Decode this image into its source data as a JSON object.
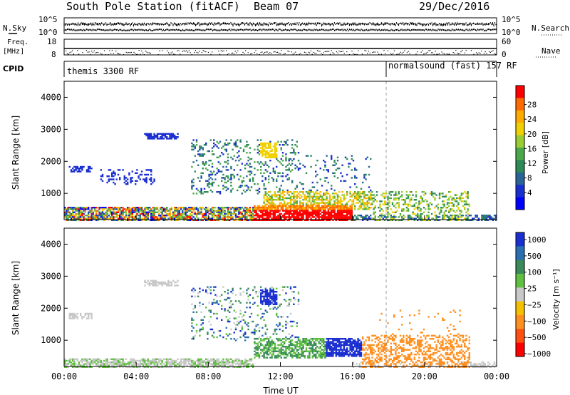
{
  "header": {
    "title": "South Pole Station (fitACF)",
    "beam": "Beam 07",
    "date": "29/Dec/2016"
  },
  "strips": {
    "nsky_label": "N.Sky",
    "nsearch_label": "N.Search",
    "freq_label_line1": "Freq.",
    "freq_label_line2": "[MHz]",
    "nave_label": "Nave",
    "cpid_label": "CPID",
    "nsky_ticks": [
      "10^5",
      "10^0"
    ],
    "nsearch_ticks": [
      "10^5",
      "10^0"
    ],
    "freq_ticks": [
      "18",
      "8"
    ],
    "nave_ticks": [
      "60",
      "0"
    ],
    "cpid_left": "themis 3300 RF",
    "cpid_right": "normalsound (fast) 157 RF"
  },
  "chart_data": [
    {
      "type": "heatmap",
      "name": "power",
      "ylabel": "Slant Range [km]",
      "ylim": [
        180,
        4500
      ],
      "y_ticks": [
        "1000",
        "2000",
        "3000",
        "4000"
      ],
      "xlim": [
        0,
        24
      ],
      "colorbar": {
        "label": "Power [dB]",
        "ticks": [
          "28",
          "24",
          "20",
          "16",
          "12",
          "8",
          "4"
        ],
        "colors": [
          "#ff0000",
          "#ff6a00",
          "#ffaa00",
          "#f0d000",
          "#9acd32",
          "#4aa84a",
          "#2e8b57",
          "#2a6496",
          "#1a2fd0",
          "#0000ff"
        ]
      }
    },
    {
      "type": "heatmap",
      "name": "velocity",
      "ylabel": "Slant Range [km]",
      "xlabel": "Time UT",
      "ylim": [
        180,
        4500
      ],
      "y_ticks": [
        "1000",
        "2000",
        "3000",
        "4000"
      ],
      "x_ticks": [
        "00:00",
        "04:00",
        "08:00",
        "12:00",
        "16:00",
        "20:00",
        "00:00"
      ],
      "xlim": [
        0,
        24
      ],
      "colorbar": {
        "label": "Velocity [m s⁻¹]",
        "ticks": [
          "1000",
          "500",
          "100",
          "25",
          "−25",
          "−100",
          "−500",
          "−1000"
        ],
        "colors": [
          "#1a2fd0",
          "#2a6fb0",
          "#3a8a5a",
          "#60c040",
          "#c8c8c8",
          "#f5c000",
          "#ff9020",
          "#ff5010",
          "#ff0000"
        ]
      }
    }
  ]
}
